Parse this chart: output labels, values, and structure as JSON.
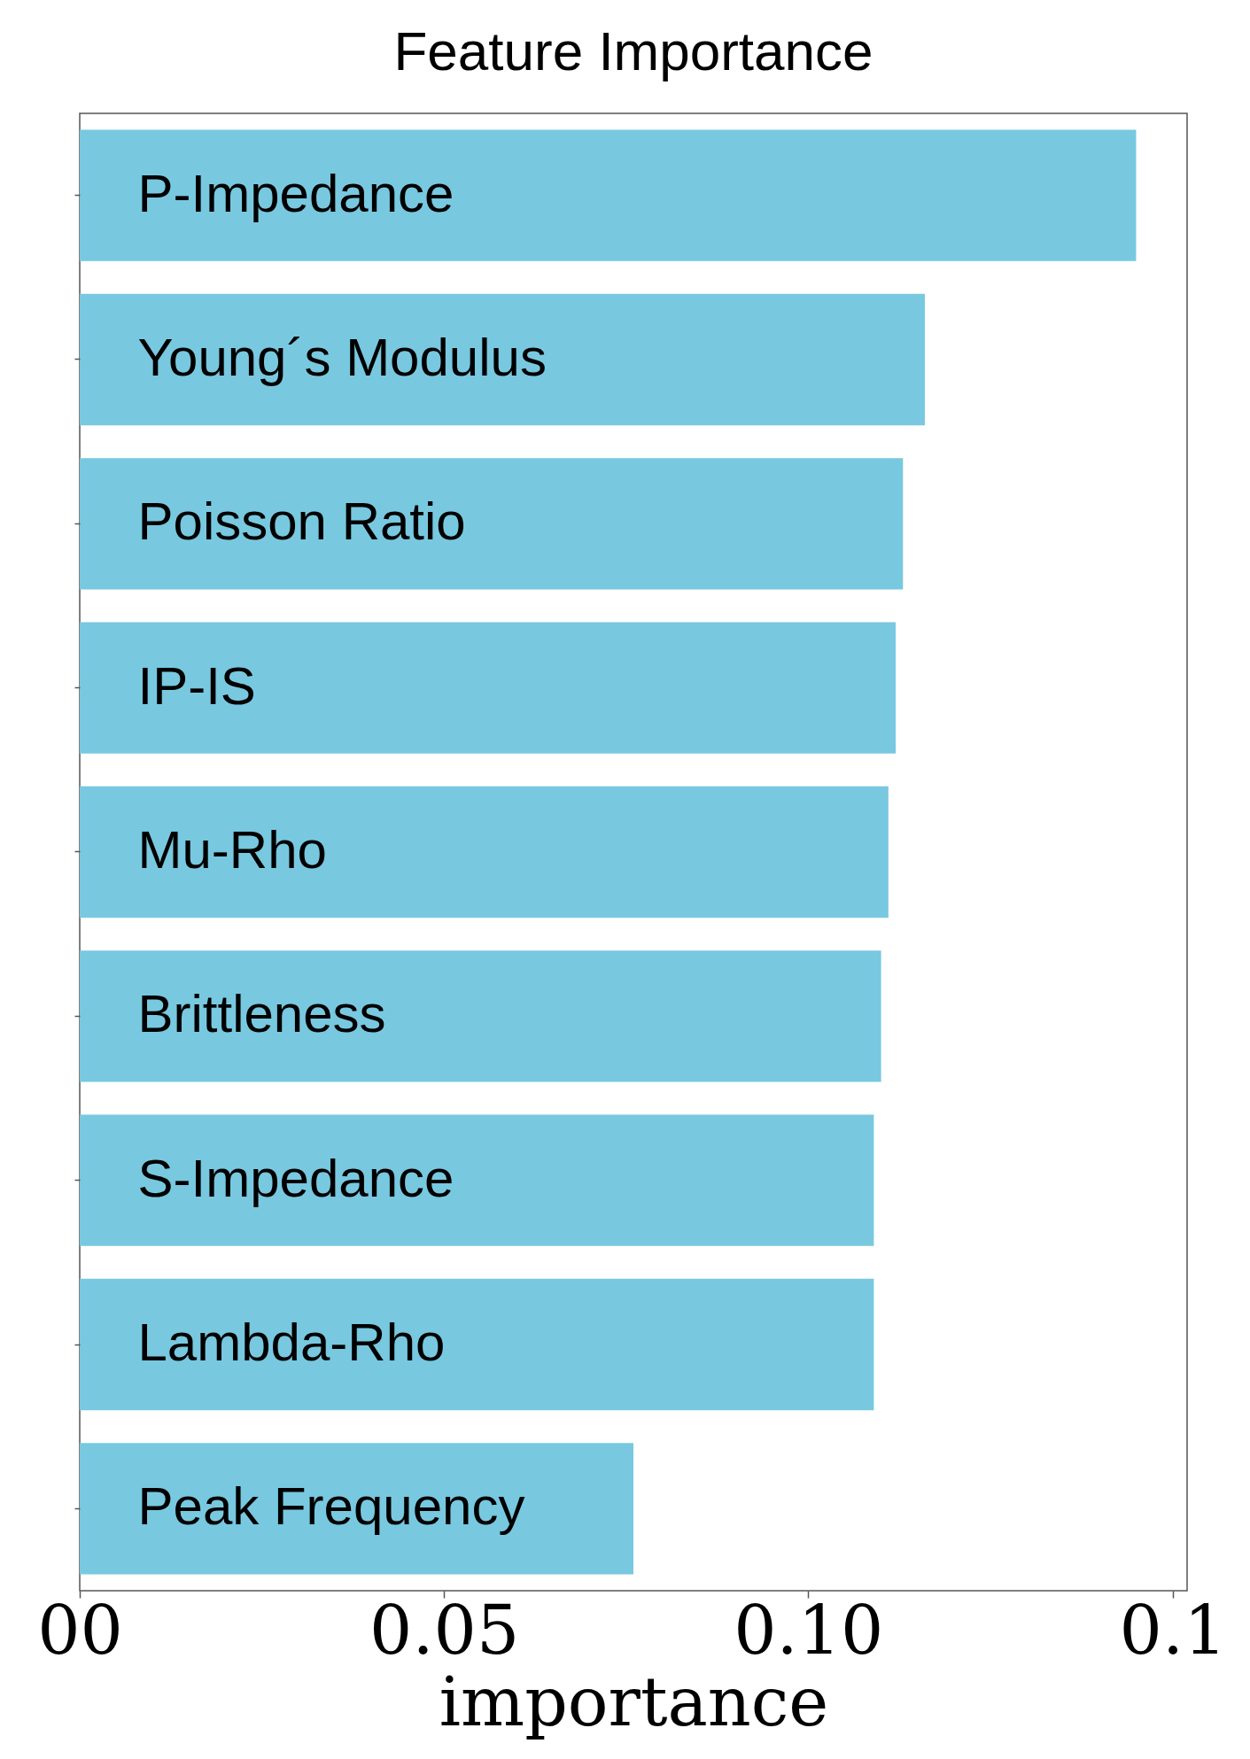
{
  "chart_data": {
    "type": "bar",
    "orientation": "horizontal",
    "title": "Feature Importance",
    "xlabel": "importance",
    "categories": [
      "P-Impedance",
      "Young´s Modulus",
      "Poisson Ratio",
      "IP-IS",
      "Mu-Rho",
      "Brittleness",
      "S-Impedance",
      "Lambda-Rho",
      "Peak Frequency"
    ],
    "values": [
      0.145,
      0.116,
      0.113,
      0.112,
      0.111,
      0.11,
      0.109,
      0.109,
      0.076
    ],
    "color": "#78c8e0",
    "xlim": [
      0,
      0.152
    ],
    "xticks": [
      {
        "value": 0,
        "label": "00"
      },
      0.05,
      {
        "value": 0.1,
        "label": "0.10"
      },
      {
        "value": 0.15,
        "label": "0.1"
      }
    ]
  }
}
